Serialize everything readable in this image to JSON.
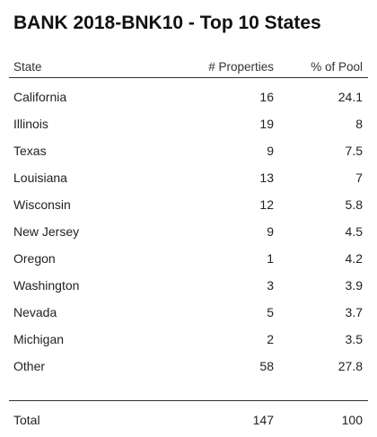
{
  "chart_data": {
    "type": "table",
    "title": "BANK 2018-BNK10 - Top 10 States",
    "columns": [
      "State",
      "# Properties",
      "% of Pool"
    ],
    "rows": [
      {
        "state": "California",
        "properties": "16",
        "pct": "24.1"
      },
      {
        "state": "Illinois",
        "properties": "19",
        "pct": "8"
      },
      {
        "state": "Texas",
        "properties": "9",
        "pct": "7.5"
      },
      {
        "state": "Louisiana",
        "properties": "13",
        "pct": "7"
      },
      {
        "state": "Wisconsin",
        "properties": "12",
        "pct": "5.8"
      },
      {
        "state": "New Jersey",
        "properties": "9",
        "pct": "4.5"
      },
      {
        "state": "Oregon",
        "properties": "1",
        "pct": "4.2"
      },
      {
        "state": "Washington",
        "properties": "3",
        "pct": "3.9"
      },
      {
        "state": "Nevada",
        "properties": "5",
        "pct": "3.7"
      },
      {
        "state": "Michigan",
        "properties": "2",
        "pct": "3.5"
      },
      {
        "state": "Other",
        "properties": "58",
        "pct": "27.8"
      }
    ],
    "total": {
      "label": "Total",
      "properties": "147",
      "pct": "100"
    }
  }
}
